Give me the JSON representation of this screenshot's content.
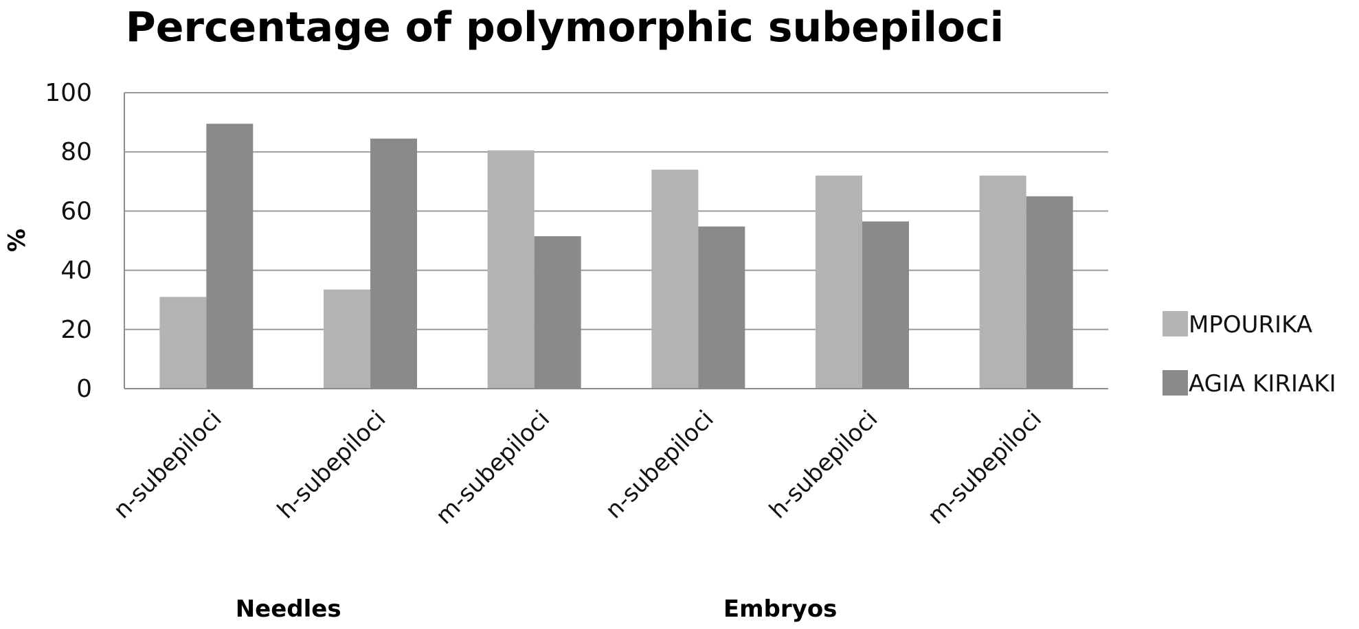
{
  "chart_data": {
    "type": "bar",
    "title": "Percentage of polymorphic subepiloci",
    "xlabel": "",
    "ylabel": "%",
    "ylim": [
      0,
      100
    ],
    "yticks": [
      "0",
      "20",
      "40",
      "60",
      "80",
      "100"
    ],
    "grid": true,
    "legend_position": "right",
    "categories": [
      "n-subepiloci",
      "h-subepiloci",
      "m-subepiloci",
      "n-subepiloci",
      "h-subepiloci",
      "m-subepiloci"
    ],
    "groups": [
      {
        "label": "Needles",
        "categories": [
          0,
          1
        ]
      },
      {
        "label": "Embryos",
        "categories": [
          2,
          3,
          4,
          5
        ]
      }
    ],
    "series": [
      {
        "name": "MPOURIKA",
        "color": "#b3b3b3",
        "values": [
          31,
          33.5,
          80.5,
          74,
          72,
          72
        ]
      },
      {
        "name": "AGIA KIRIAKI",
        "color": "#8a8a8a",
        "values": [
          89.5,
          84.5,
          51.5,
          54.8,
          56.5,
          65
        ]
      }
    ]
  }
}
